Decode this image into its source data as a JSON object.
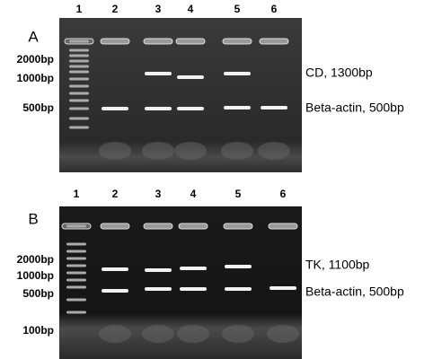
{
  "panels": [
    {
      "label": "A",
      "lanes": [
        "1",
        "2",
        "3",
        "4",
        "5",
        "6"
      ],
      "markers": [
        "2000bp",
        "1000bp",
        "500bp"
      ],
      "bands": [
        "CD, 1300bp",
        "Beta-actin, 500bp"
      ]
    },
    {
      "label": "B",
      "lanes": [
        "1",
        "2",
        "3",
        "4",
        "5",
        "6"
      ],
      "markers": [
        "2000bp",
        "1000bp",
        "500bp",
        "100bp"
      ],
      "bands": [
        "TK, 1100bp",
        "Beta-actin, 500bp"
      ]
    }
  ]
}
